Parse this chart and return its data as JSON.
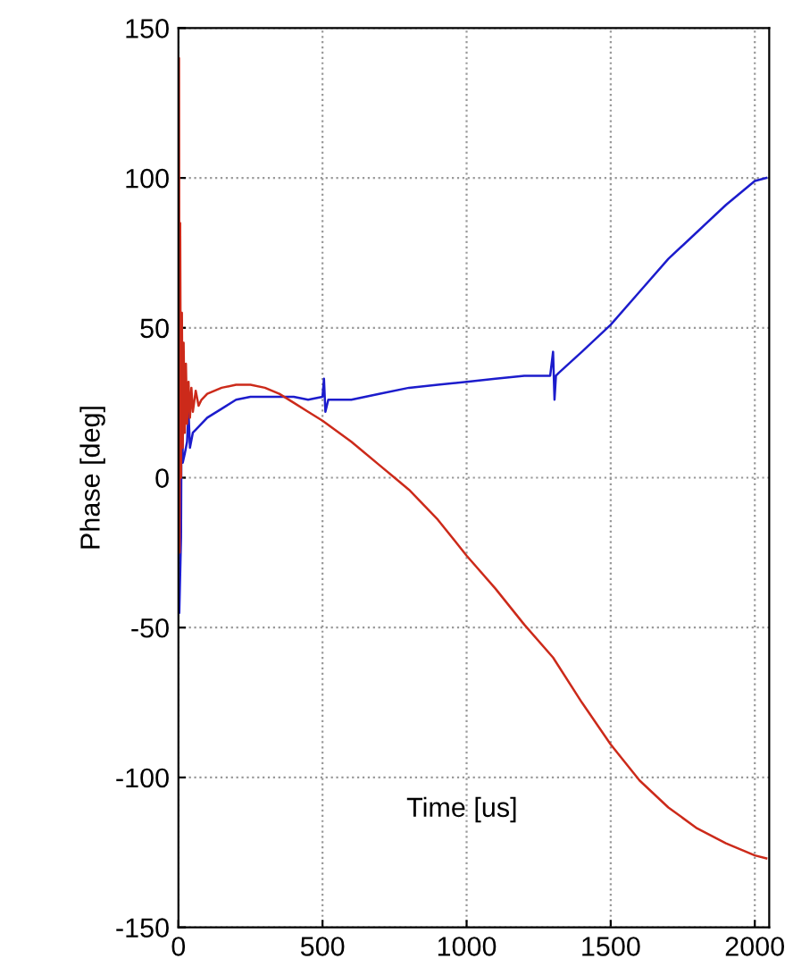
{
  "chart_data": {
    "type": "line",
    "xlabel": "Time [us]",
    "ylabel": "Phase [deg]",
    "xlim": [
      0,
      2050
    ],
    "xticks": [
      0,
      500,
      1000,
      1500,
      2000
    ],
    "ylim": [
      -150,
      150
    ],
    "yticks": [
      -150,
      -100,
      -50,
      0,
      50,
      100,
      150
    ],
    "grid": true,
    "line_style": "solid",
    "marker": "none",
    "series": [
      {
        "color": "#1c1ccc",
        "x": [
          3,
          9,
          12,
          15,
          22,
          30,
          35,
          40,
          50,
          60,
          80,
          100,
          150,
          200,
          250,
          300,
          350,
          400,
          450,
          500,
          505,
          510,
          520,
          600,
          700,
          800,
          900,
          1000,
          1100,
          1200,
          1290,
          1300,
          1305,
          1310,
          1320,
          1400,
          1500,
          1600,
          1700,
          1800,
          1900,
          2000,
          2040
        ],
        "values": [
          -45,
          -20,
          50,
          5,
          8,
          12,
          22,
          10,
          15,
          16,
          18,
          20,
          23,
          26,
          27,
          27,
          27,
          27,
          26,
          27,
          33,
          22,
          26,
          26,
          28,
          30,
          31,
          32,
          33,
          34,
          34,
          42,
          26,
          34,
          35,
          42,
          51,
          62,
          73,
          82,
          91,
          99,
          100
        ]
      },
      {
        "color": "#cc2a1a",
        "x": [
          0,
          2,
          4,
          6,
          9,
          12,
          15,
          18,
          22,
          26,
          30,
          35,
          40,
          45,
          50,
          60,
          70,
          80,
          100,
          150,
          200,
          250,
          300,
          350,
          400,
          450,
          500,
          600,
          700,
          750,
          800,
          900,
          1000,
          1100,
          1200,
          1300,
          1400,
          1500,
          1600,
          1700,
          1800,
          1900,
          2000,
          2040
        ],
        "values": [
          90,
          140,
          -25,
          85,
          0,
          55,
          10,
          45,
          15,
          38,
          18,
          32,
          20,
          30,
          22,
          29,
          24,
          26,
          28,
          30,
          31,
          31,
          30,
          28,
          25,
          22,
          19,
          12,
          4,
          0,
          -4,
          -14,
          -26,
          -37,
          -49,
          -60,
          -75,
          -89,
          -101,
          -110,
          -117,
          -122,
          -126,
          -127
        ]
      }
    ]
  }
}
